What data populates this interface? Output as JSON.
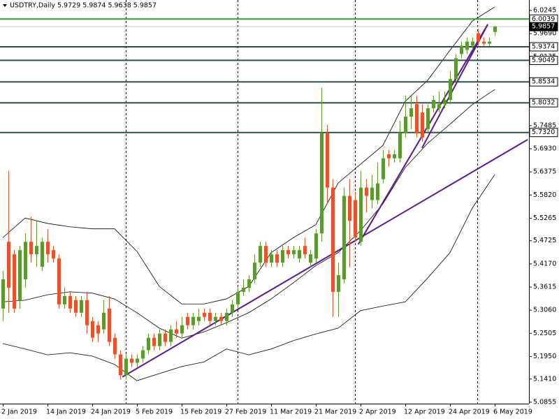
{
  "chart_data": {
    "type": "candlestick",
    "title": "USDTRY,Daily  5.9729 5.9874 5.9638 5.9857",
    "categories": [
      "2 Jan 2019",
      null,
      null,
      null,
      null,
      null,
      null,
      null,
      "14 Jan 2019",
      null,
      null,
      null,
      null,
      null,
      null,
      null,
      "24 Jan 2019",
      null,
      null,
      null,
      null,
      null,
      null,
      null,
      "5 Feb 2019",
      null,
      null,
      null,
      null,
      null,
      null,
      null,
      "15 Feb 2019",
      null,
      null,
      null,
      null,
      null,
      null,
      null,
      "27 Feb 2019",
      null,
      null,
      null,
      null,
      null,
      null,
      null,
      "11 Mar 2019",
      null,
      null,
      null,
      null,
      null,
      null,
      null,
      "21 Mar 2019",
      null,
      null,
      null,
      null,
      null,
      null,
      null,
      "2 Apr 2019",
      null,
      null,
      null,
      null,
      null,
      null,
      null,
      "12 Apr 2019",
      null,
      null,
      null,
      null,
      null,
      null,
      null,
      "24 Apr 2019",
      null,
      null,
      null,
      null,
      null,
      null,
      null,
      "6 May 2019"
    ],
    "candles": {
      "open": [
        5.31,
        5.47,
        5.44,
        5.33,
        5.38,
        5.47,
        5.44,
        5.41,
        5.47,
        5.45,
        5.43,
        5.32,
        5.34,
        5.33,
        5.3,
        5.33,
        5.28,
        5.27,
        5.26,
        5.31,
        5.24,
        5.2,
        5.15,
        5.19,
        5.18,
        5.19,
        5.21,
        5.24,
        5.22,
        5.25,
        5.23,
        5.26,
        5.25,
        5.29,
        5.27,
        5.28,
        5.3,
        5.3,
        5.28,
        5.29,
        5.28,
        5.3,
        5.32,
        5.35,
        5.36,
        5.38,
        5.42,
        5.46,
        5.42,
        5.44,
        5.42,
        5.45,
        5.44,
        5.43,
        5.46,
        5.42,
        5.43,
        5.49,
        5.73,
        5.6,
        5.35,
        5.38,
        5.58,
        5.57,
        5.47,
        5.6,
        5.57,
        5.57,
        5.62,
        5.68,
        5.67,
        5.67,
        5.73,
        5.77,
        5.8,
        5.78,
        5.74,
        5.79,
        5.79,
        5.8,
        5.81,
        5.86,
        5.92,
        5.93,
        5.94,
        5.97,
        5.95,
        5.945,
        5.9729
      ],
      "high": [
        5.4,
        5.64,
        5.45,
        5.46,
        5.49,
        5.53,
        5.52,
        5.48,
        5.5,
        5.46,
        5.44,
        5.36,
        5.35,
        5.34,
        5.34,
        5.35,
        5.29,
        5.28,
        5.33,
        5.34,
        5.25,
        5.21,
        5.2,
        5.2,
        5.2,
        5.22,
        5.25,
        5.25,
        5.26,
        5.26,
        5.27,
        5.28,
        5.29,
        5.3,
        5.3,
        5.31,
        5.31,
        5.31,
        5.3,
        5.3,
        5.31,
        5.33,
        5.36,
        5.38,
        5.39,
        5.44,
        5.47,
        5.47,
        5.45,
        5.45,
        5.46,
        5.46,
        5.46,
        5.46,
        5.48,
        5.45,
        5.5,
        5.84,
        5.75,
        5.62,
        5.42,
        5.6,
        5.62,
        5.59,
        5.64,
        5.62,
        5.63,
        5.66,
        5.69,
        5.69,
        5.69,
        5.76,
        5.82,
        5.82,
        5.82,
        5.8,
        5.8,
        5.82,
        5.83,
        5.83,
        5.88,
        5.92,
        5.95,
        5.96,
        5.96,
        5.98,
        5.96,
        5.96,
        5.9874
      ],
      "low": [
        5.28,
        5.3,
        5.3,
        5.31,
        5.36,
        5.42,
        5.41,
        5.4,
        5.42,
        5.42,
        5.31,
        5.31,
        5.3,
        5.29,
        5.29,
        5.25,
        5.23,
        5.23,
        5.25,
        5.22,
        5.19,
        5.14,
        5.14,
        5.17,
        5.17,
        5.18,
        5.2,
        5.21,
        5.21,
        5.22,
        5.22,
        5.24,
        5.24,
        5.26,
        5.26,
        5.27,
        5.28,
        5.27,
        5.27,
        5.27,
        5.27,
        5.29,
        5.31,
        5.34,
        5.35,
        5.37,
        5.41,
        5.41,
        5.41,
        5.41,
        5.41,
        5.43,
        5.43,
        5.42,
        5.43,
        5.41,
        5.42,
        5.47,
        5.56,
        5.29,
        5.29,
        5.37,
        5.41,
        5.47,
        5.46,
        5.54,
        5.55,
        5.56,
        5.61,
        5.65,
        5.66,
        5.66,
        5.72,
        5.74,
        5.72,
        5.71,
        5.73,
        5.78,
        5.78,
        5.79,
        5.8,
        5.85,
        5.91,
        5.92,
        5.93,
        5.94,
        5.94,
        5.94,
        5.9638
      ],
      "close": [
        5.38,
        5.36,
        5.31,
        5.45,
        5.47,
        5.44,
        5.46,
        5.47,
        5.44,
        5.43,
        5.32,
        5.34,
        5.31,
        5.3,
        5.33,
        5.27,
        5.24,
        5.25,
        5.3,
        5.23,
        5.2,
        5.15,
        5.19,
        5.18,
        5.19,
        5.21,
        5.24,
        5.22,
        5.25,
        5.23,
        5.26,
        5.25,
        5.27,
        5.27,
        5.29,
        5.29,
        5.29,
        5.28,
        5.29,
        5.28,
        5.3,
        5.32,
        5.35,
        5.36,
        5.38,
        5.42,
        5.46,
        5.42,
        5.44,
        5.42,
        5.45,
        5.44,
        5.45,
        5.45,
        5.44,
        5.44,
        5.49,
        5.73,
        5.6,
        5.35,
        5.39,
        5.58,
        5.52,
        5.48,
        5.6,
        5.58,
        5.6,
        5.61,
        5.67,
        5.67,
        5.68,
        5.73,
        5.77,
        5.79,
        5.73,
        5.72,
        5.79,
        5.81,
        5.8,
        5.81,
        5.86,
        5.91,
        5.94,
        5.95,
        5.95,
        5.95,
        5.945,
        5.95,
        5.9857
      ]
    },
    "up_color": "#5b9a31",
    "down_color": "#e8532e",
    "bands": {
      "color": "#000000",
      "x": [
        0,
        4,
        8,
        12,
        16,
        20,
        24,
        28,
        32,
        36,
        40,
        44,
        48,
        52,
        56,
        60,
        64,
        68,
        72,
        76,
        80,
        84,
        88
      ],
      "upper": [
        5.48,
        5.527,
        5.514,
        5.506,
        5.501,
        5.501,
        5.447,
        5.363,
        5.321,
        5.321,
        5.333,
        5.363,
        5.444,
        5.48,
        5.511,
        5.611,
        5.656,
        5.701,
        5.807,
        5.857,
        5.929,
        5.999,
        6.033
      ],
      "middle": [
        5.326,
        5.33,
        5.343,
        5.35,
        5.347,
        5.333,
        5.3,
        5.263,
        5.239,
        5.254,
        5.276,
        5.3,
        5.333,
        5.372,
        5.413,
        5.444,
        5.497,
        5.561,
        5.648,
        5.706,
        5.752,
        5.799,
        5.835
      ],
      "lower": [
        5.226,
        5.213,
        5.199,
        5.204,
        5.196,
        5.176,
        5.137,
        5.154,
        5.171,
        5.182,
        5.213,
        5.199,
        5.213,
        5.233,
        5.249,
        5.263,
        5.305,
        5.316,
        5.326,
        5.383,
        5.444,
        5.551,
        5.631
      ]
    },
    "trendlines": [
      {
        "color": "#5b1a8c",
        "x": [
          21.4,
          93.9
        ],
        "values": [
          5.146,
          5.715
        ]
      },
      {
        "color": "#5b1a8c",
        "x": [
          63.6,
          86.75
        ],
        "values": [
          5.464,
          5.991
        ]
      },
      {
        "color": "#5b1a8c",
        "x": [
          75,
          86.75
        ],
        "values": [
          5.695,
          5.991
        ]
      }
    ],
    "levels": {
      "values": [
        6.0039,
        5.9857,
        5.9374,
        5.9049,
        5.8534,
        5.8032,
        5.732
      ],
      "value_labels": [
        "6.0039",
        "5.9857",
        "5.9374",
        "5.9049",
        "5.8534",
        "5.8032",
        "5.7320"
      ],
      "colors": [
        "#3a9a3a",
        "#c0c0c0",
        "#2f4f4f",
        "#2f4f4f",
        "#2f4f4f",
        "#2f4f4f",
        "#2f4f4f"
      ]
    },
    "current_level": 1,
    "ylim": [
      5.082,
      6.0496
    ],
    "yticks": [
      6.0245,
      {
        "value": 5.969,
        "label": "5.9690"
      },
      5.9135,
      5.7485,
      {
        "value": 5.693,
        "label": "5.6930"
      },
      5.6375,
      {
        "value": 5.582,
        "label": "5.5820"
      },
      5.5265,
      5.4725,
      {
        "value": 5.417,
        "label": "5.4170"
      },
      5.3615,
      {
        "value": 5.306,
        "label": "5.3060"
      },
      5.2505,
      {
        "value": 5.195,
        "label": "5.1950"
      },
      {
        "value": 5.141,
        "label": "5.1410"
      },
      5.0855
    ]
  }
}
